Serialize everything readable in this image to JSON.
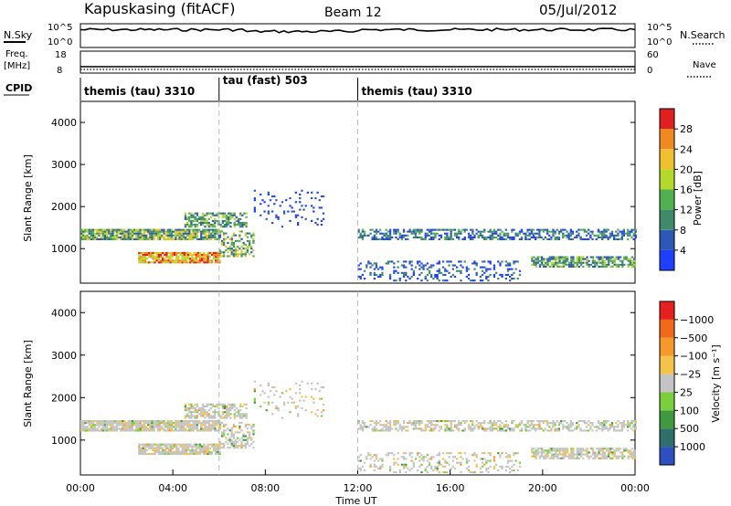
{
  "header": {
    "station": "Kapuskasing (fitACF)",
    "beam": "Beam 12",
    "date": "05/Jul/2012"
  },
  "top_panel": {
    "left_label": "N.Sky",
    "left_ticks": [
      "10^5",
      "10^0"
    ],
    "right_ticks": [
      "10^5",
      "10^0"
    ],
    "right_label": "N.Search"
  },
  "freq_panel": {
    "left_label": "Freq.",
    "left_unit": "[MHz]",
    "left_ticks": [
      "18",
      "8"
    ],
    "right_ticks": [
      "60",
      "0"
    ],
    "right_label": "Nave"
  },
  "cpid": {
    "label": "CPID",
    "segments": [
      {
        "start_h": 0,
        "end_h": 6,
        "name": "themis (tau) 3310"
      },
      {
        "start_h": 6,
        "end_h": 12,
        "name": "tau (fast) 503"
      },
      {
        "start_h": 12,
        "end_h": 24,
        "name": "themis (tau) 3310"
      }
    ]
  },
  "chart_data": [
    {
      "type": "heatmap",
      "title": "",
      "ylabel": "Slant Range [km]",
      "xlabel": "",
      "xlim_hours": [
        0,
        24
      ],
      "ylim_km": [
        180,
        4500
      ],
      "yticks": [
        1000,
        2000,
        3000,
        4000
      ],
      "colorbar": {
        "label": "Power [dB]",
        "tick_labels": [
          "4",
          "8",
          "12",
          "16",
          "20",
          "24",
          "28"
        ],
        "colors": [
          "#1f3fff",
          "#2e58b8",
          "#3f8a6a",
          "#52b050",
          "#b4d82c",
          "#f0c030",
          "#f08a20",
          "#e02020"
        ],
        "vmin": 0,
        "vmax": 30
      },
      "features": [
        {
          "t": [
            0.0,
            6.0
          ],
          "r": [
            1200,
            1450
          ],
          "level": "green-yellow"
        },
        {
          "t": [
            2.5,
            6.0
          ],
          "r": [
            650,
            900
          ],
          "level": "orange-red"
        },
        {
          "t": [
            12.0,
            24.0
          ],
          "r": [
            1200,
            1450
          ],
          "level": "blue-green"
        },
        {
          "t": [
            19.5,
            24.0
          ],
          "r": [
            550,
            800
          ],
          "level": "blue-green"
        },
        {
          "t": [
            7.5,
            10.5
          ],
          "r": [
            1500,
            2400
          ],
          "level": "blue"
        }
      ]
    },
    {
      "type": "heatmap",
      "title": "",
      "ylabel": "Slant Range [km]",
      "xlabel": "Time UT",
      "xlim_hours": [
        0,
        24
      ],
      "ylim_km": [
        180,
        4500
      ],
      "yticks": [
        1000,
        2000,
        3000,
        4000
      ],
      "xticks": [
        "00:00",
        "04:00",
        "08:00",
        "12:00",
        "16:00",
        "20:00",
        "00:00"
      ],
      "colorbar": {
        "label": "Velocity [m s⁻¹]",
        "tick_labels": [
          "1000",
          "500",
          "100",
          "25",
          "−25",
          "−100",
          "−500",
          "−1000"
        ],
        "colors": [
          "#2e4fc0",
          "#2e6f6a",
          "#3f9a3f",
          "#7ccf3c",
          "#c4c4c4",
          "#f5c24a",
          "#f59a2a",
          "#f06a1a",
          "#e81f1f"
        ],
        "vmin": -1000,
        "vmax": 1000
      }
    }
  ]
}
